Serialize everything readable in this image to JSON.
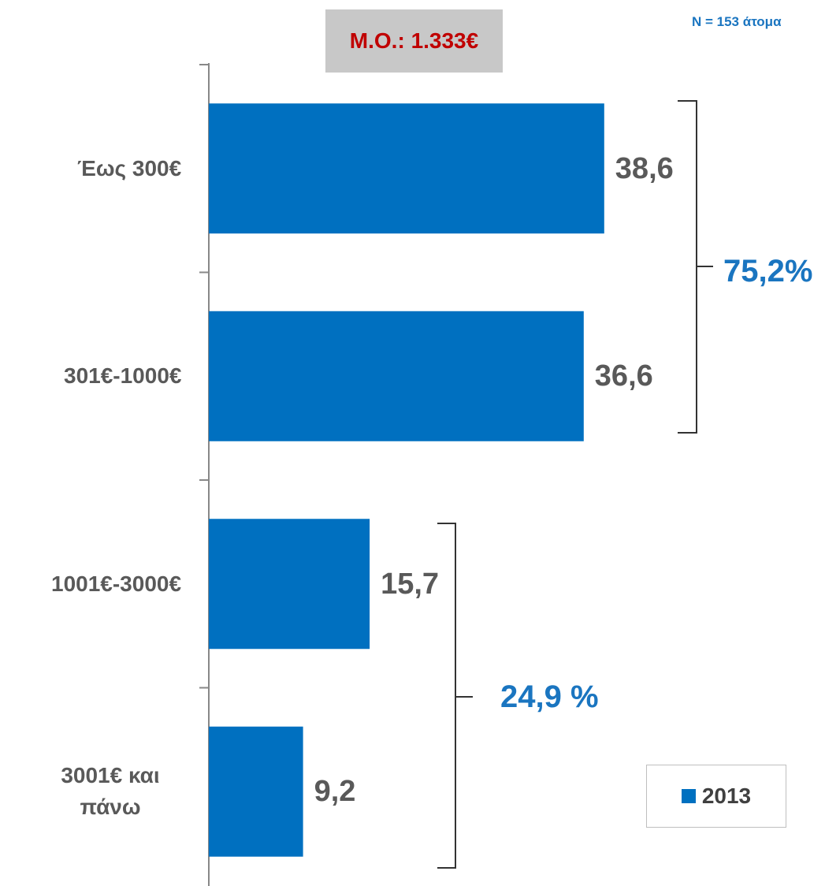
{
  "chart_data": {
    "type": "bar",
    "orientation": "horizontal",
    "categories": [
      "Έως 300€",
      "301€-1000€",
      "1001€-3000€",
      "3001€ και πάνω"
    ],
    "series": [
      {
        "name": "2013",
        "color": "#0070c0",
        "values": [
          38.6,
          36.6,
          15.7,
          9.2
        ],
        "value_labels": [
          "38,6",
          "36,6",
          "15,7",
          "9,2"
        ]
      }
    ],
    "annotations": {
      "mean": "Μ.Ο.: 1.333€",
      "sample": "N = 153 άτομα",
      "groups": [
        "75,2%",
        "24,9 %"
      ]
    },
    "legend": "bottom-right"
  }
}
